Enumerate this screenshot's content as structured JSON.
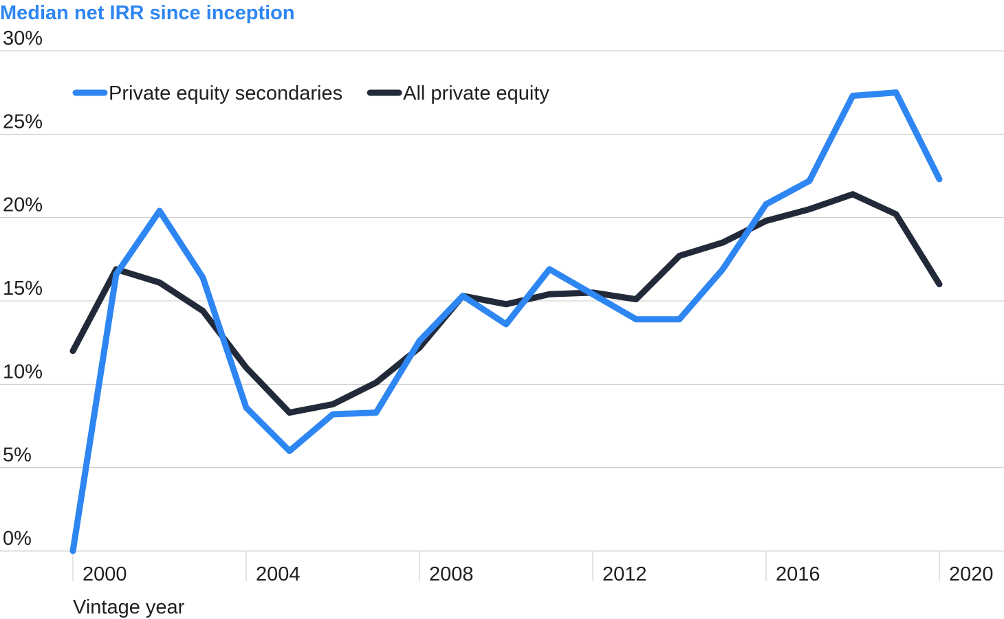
{
  "chart_data": {
    "type": "line",
    "title": "Median net IRR since inception",
    "xlabel": "Vintage year",
    "ylabel": "",
    "ylim": [
      0,
      30
    ],
    "y_ticks": [
      "0%",
      "5%",
      "10%",
      "15%",
      "20%",
      "25%",
      "30%"
    ],
    "y_tick_values": [
      0,
      5,
      10,
      15,
      20,
      25,
      30
    ],
    "x_ticks": [
      "2000",
      "2004",
      "2008",
      "2012",
      "2016",
      "2020"
    ],
    "x_tick_values": [
      2000,
      2004,
      2008,
      2012,
      2016,
      2020
    ],
    "grid": "horizontal",
    "legend_position": "top-left",
    "x": [
      2000,
      2001,
      2002,
      2003,
      2004,
      2005,
      2006,
      2007,
      2008,
      2009,
      2010,
      2011,
      2012,
      2013,
      2014,
      2015,
      2016,
      2017,
      2018,
      2019,
      2020
    ],
    "series": [
      {
        "name": "Private equity secondaries",
        "color": "#2e86f2",
        "values": [
          0,
          16.6,
          20.4,
          16.4,
          8.6,
          6.0,
          8.2,
          8.3,
          12.6,
          15.3,
          13.6,
          16.9,
          15.4,
          13.9,
          13.9,
          16.9,
          20.8,
          22.2,
          27.3,
          27.5,
          22.3
        ]
      },
      {
        "name": "All private equity",
        "color": "#222a3a",
        "values": [
          12.0,
          16.9,
          16.1,
          14.4,
          11.0,
          8.3,
          8.8,
          10.1,
          12.2,
          15.3,
          14.8,
          15.4,
          15.5,
          15.1,
          17.7,
          18.5,
          19.8,
          20.5,
          21.4,
          20.2,
          16.0
        ]
      }
    ]
  }
}
